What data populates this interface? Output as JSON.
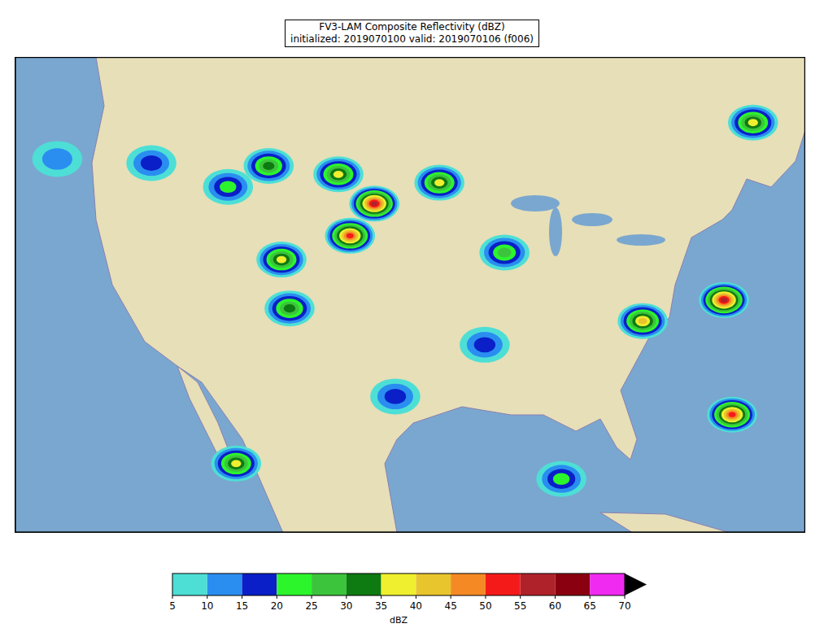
{
  "chart_data": {
    "type": "scatter",
    "title": "FV3-LAM Composite Reflectivity (dBZ)",
    "subtitle": "initialized: 2019070100 valid: 2019070106 (f006)",
    "tick_labels": false,
    "xlim": [
      -128,
      -60
    ],
    "ylim": [
      18,
      52
    ],
    "x": [
      -124.4,
      -116.3,
      -106.2,
      -100.2,
      -97.1,
      -99.2,
      -91.5,
      -105.1,
      -104.4,
      -85.9,
      -64.5,
      -67.0,
      -74.0,
      -66.3,
      -109.0,
      -81.0,
      -95.3,
      -87.6,
      -109.7
    ],
    "values": [
      44.7,
      44.4,
      44.2,
      43.6,
      41.5,
      39.2,
      43.0,
      37.5,
      34.0,
      38.0,
      47.3,
      34.6,
      33.1,
      26.4,
      22.9,
      21.8,
      27.7,
      31.4,
      42.7
    ],
    "dbz": [
      10,
      15,
      30,
      35,
      55,
      50,
      35,
      35,
      30,
      25,
      35,
      55,
      40,
      50,
      35,
      20,
      15,
      15,
      20
    ],
    "colorbar": {
      "label": "dBZ",
      "range": [
        5,
        70
      ],
      "ticks": [
        5,
        10,
        15,
        20,
        25,
        30,
        35,
        40,
        45,
        50,
        55,
        60,
        65,
        70
      ],
      "colors": [
        "#4ddfd6",
        "#2a8ef0",
        "#0a1fc8",
        "#2cf52c",
        "#3cc43c",
        "#0e7a12",
        "#efef30",
        "#e8c52d",
        "#f58a25",
        "#f51a1a",
        "#b0222a",
        "#8a0010",
        "#f02af0"
      ]
    }
  }
}
